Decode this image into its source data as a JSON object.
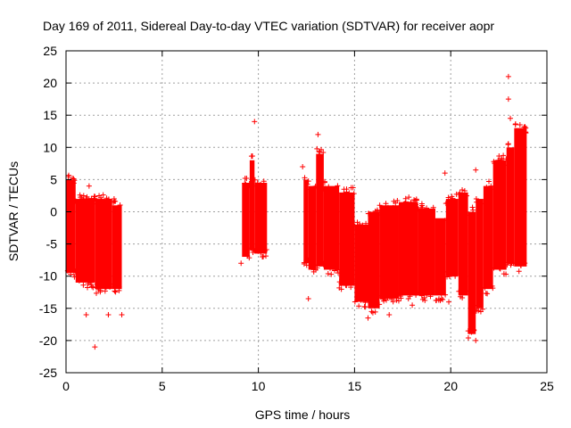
{
  "chart_data": {
    "type": "scatter",
    "title": "Day 169 of 2011, Sidereal Day-to-day VTEC variation (SDTVAR) for receiver aopr",
    "xlabel": "GPS time / hours",
    "ylabel": "SDTVAR / TECUs",
    "xlim": [
      0,
      25
    ],
    "ylim": [
      -25,
      25
    ],
    "xticks": [
      0,
      5,
      10,
      15,
      20,
      25
    ],
    "yticks": [
      -25,
      -20,
      -15,
      -10,
      -5,
      0,
      5,
      10,
      15,
      20,
      25
    ],
    "xtick_labels": [
      "0",
      "5",
      "10",
      "15",
      "20",
      "25"
    ],
    "ytick_labels": [
      "-25",
      "-20",
      "-15",
      "-10",
      "-5",
      "0",
      "5",
      "10",
      "15",
      "20",
      "25"
    ],
    "grid": true,
    "marker": "+",
    "series": [
      {
        "name": "SDTVAR",
        "color": "#ff0000",
        "bands": [
          {
            "x": [
              0.0,
              0.5
            ],
            "y": [
              -9.5,
              5.0
            ]
          },
          {
            "x": [
              0.5,
              1.5
            ],
            "y": [
              -11.0,
              2.0
            ]
          },
          {
            "x": [
              1.5,
              2.4
            ],
            "y": [
              -12.0,
              2.0
            ]
          },
          {
            "x": [
              2.4,
              2.9
            ],
            "y": [
              -12.0,
              1.0
            ]
          },
          {
            "x": [
              9.15,
              9.55
            ],
            "y": [
              -7.0,
              4.5
            ]
          },
          {
            "x": [
              9.55,
              9.8
            ],
            "y": [
              -6.0,
              8.0
            ]
          },
          {
            "x": [
              9.8,
              10.45
            ],
            "y": [
              -6.5,
              4.5
            ]
          },
          {
            "x": [
              12.35,
              12.6
            ],
            "y": [
              -8.0,
              5.0
            ]
          },
          {
            "x": [
              12.6,
              13.0
            ],
            "y": [
              -9.0,
              4.0
            ]
          },
          {
            "x": [
              13.0,
              13.4
            ],
            "y": [
              -8.5,
              9.0
            ]
          },
          {
            "x": [
              13.4,
              14.2
            ],
            "y": [
              -9.0,
              4.0
            ]
          },
          {
            "x": [
              14.2,
              15.0
            ],
            "y": [
              -11.5,
              3.0
            ]
          },
          {
            "x": [
              15.0,
              15.7
            ],
            "y": [
              -14.0,
              -2.0
            ]
          },
          {
            "x": [
              15.7,
              16.3
            ],
            "y": [
              -15.0,
              0.0
            ]
          },
          {
            "x": [
              16.3,
              17.3
            ],
            "y": [
              -13.5,
              1.0
            ]
          },
          {
            "x": [
              17.3,
              18.3
            ],
            "y": [
              -13.0,
              1.5
            ]
          },
          {
            "x": [
              18.3,
              19.2
            ],
            "y": [
              -13.0,
              0.5
            ]
          },
          {
            "x": [
              19.2,
              19.75
            ],
            "y": [
              -13.0,
              -1.0
            ]
          },
          {
            "x": [
              19.75,
              20.4
            ],
            "y": [
              -10.0,
              2.0
            ]
          },
          {
            "x": [
              20.4,
              20.9
            ],
            "y": [
              -13.0,
              3.0
            ]
          },
          {
            "x": [
              20.9,
              21.3
            ],
            "y": [
              -19.0,
              0.0
            ]
          },
          {
            "x": [
              21.3,
              21.7
            ],
            "y": [
              -15.0,
              2.0
            ]
          },
          {
            "x": [
              21.7,
              22.2
            ],
            "y": [
              -12.0,
              4.0
            ]
          },
          {
            "x": [
              22.2,
              22.9
            ],
            "y": [
              -9.0,
              8.0
            ]
          },
          {
            "x": [
              22.9,
              23.3
            ],
            "y": [
              -8.0,
              10.0
            ]
          },
          {
            "x": [
              23.3,
              23.95
            ],
            "y": [
              -8.5,
              13.0
            ]
          }
        ],
        "outliers": [
          {
            "x": 1.5,
            "y": -21.0
          },
          {
            "x": 1.05,
            "y": -16.0
          },
          {
            "x": 2.2,
            "y": -16.0
          },
          {
            "x": 2.9,
            "y": -16.0
          },
          {
            "x": 1.2,
            "y": 4.0
          },
          {
            "x": 2.5,
            "y": 2.0
          },
          {
            "x": 9.8,
            "y": 14.0
          },
          {
            "x": 9.1,
            "y": -8.0
          },
          {
            "x": 12.3,
            "y": 7.0
          },
          {
            "x": 12.6,
            "y": -13.5
          },
          {
            "x": 13.1,
            "y": 12.0
          },
          {
            "x": 14.0,
            "y": 0.0
          },
          {
            "x": 14.1,
            "y": -9.0
          },
          {
            "x": 14.4,
            "y": -9.5
          },
          {
            "x": 15.7,
            "y": -16.5
          },
          {
            "x": 16.5,
            "y": 0.0
          },
          {
            "x": 16.8,
            "y": -16.0
          },
          {
            "x": 17.8,
            "y": -13.5
          },
          {
            "x": 18.0,
            "y": -14.5
          },
          {
            "x": 19.7,
            "y": 6.0
          },
          {
            "x": 19.9,
            "y": -14.0
          },
          {
            "x": 21.3,
            "y": 6.5
          },
          {
            "x": 21.3,
            "y": -20.0
          },
          {
            "x": 23.0,
            "y": 21.0
          },
          {
            "x": 23.0,
            "y": 17.5
          },
          {
            "x": 23.1,
            "y": 14.5
          },
          {
            "x": 23.6,
            "y": 13.5
          },
          {
            "x": 23.9,
            "y": 13.0
          },
          {
            "x": 23.8,
            "y": -8.0
          }
        ]
      }
    ]
  }
}
